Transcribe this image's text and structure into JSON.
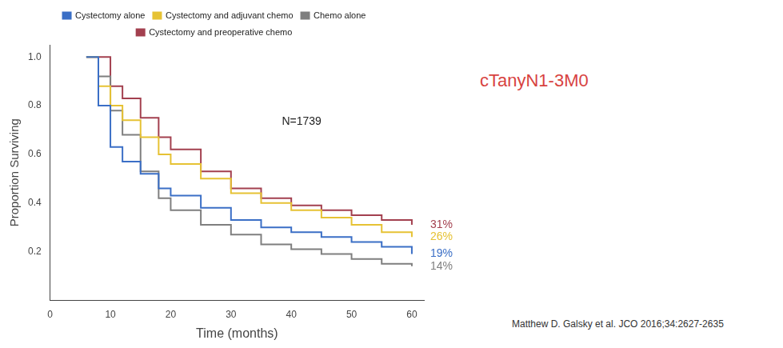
{
  "chart_data": {
    "type": "line",
    "x_label": "Time (months)",
    "y_label": "Proportion Surviving",
    "x": [
      6,
      8,
      10,
      12,
      15,
      18,
      20,
      25,
      30,
      35,
      40,
      45,
      50,
      55,
      60
    ],
    "series": [
      {
        "name": "Cystectomy alone",
        "color": "#3b6fc6",
        "end_label": "19%",
        "values": [
          1.0,
          0.8,
          0.63,
          0.57,
          0.52,
          0.46,
          0.43,
          0.38,
          0.33,
          0.3,
          0.28,
          0.26,
          0.24,
          0.22,
          0.19
        ]
      },
      {
        "name": "Cystectomy and adjuvant chemo",
        "color": "#e6c234",
        "end_label": "26%",
        "values": [
          1.0,
          0.88,
          0.8,
          0.74,
          0.67,
          0.6,
          0.56,
          0.5,
          0.44,
          0.4,
          0.37,
          0.34,
          0.31,
          0.28,
          0.26
        ]
      },
      {
        "name": "Chemo alone",
        "color": "#7f7f7f",
        "end_label": "14%",
        "values": [
          1.0,
          0.92,
          0.78,
          0.68,
          0.53,
          0.42,
          0.37,
          0.31,
          0.27,
          0.23,
          0.21,
          0.19,
          0.17,
          0.15,
          0.14
        ]
      },
      {
        "name": "Cystectomy and preoperative chemo",
        "color": "#a3404f",
        "end_label": "31%",
        "values": [
          1.0,
          1.0,
          0.88,
          0.83,
          0.75,
          0.67,
          0.62,
          0.53,
          0.46,
          0.42,
          0.39,
          0.37,
          0.35,
          0.33,
          0.31
        ]
      }
    ],
    "xlim": [
      0,
      62
    ],
    "xticks": [
      0,
      10,
      20,
      30,
      40,
      50,
      60
    ],
    "ylim": [
      0,
      1.05
    ],
    "yticks": [
      0.2,
      0.4,
      0.6,
      0.8,
      {
        "value": 1,
        "label": "1.0"
      }
    ],
    "grid": false,
    "legend": "top",
    "line_style": "step",
    "annotations": [
      "N=1739",
      "cTanyN1-3M0",
      "Matthew D. Galsky et al. JCO 2016;34:2627-2635"
    ]
  }
}
